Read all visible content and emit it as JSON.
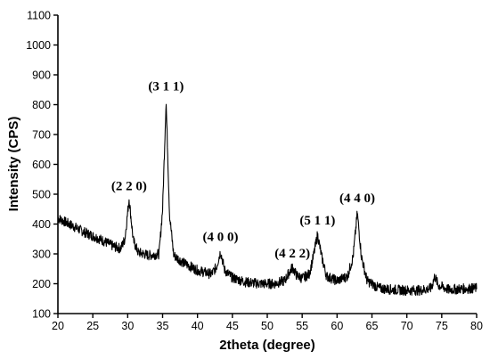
{
  "chart_data": {
    "type": "line",
    "title": "",
    "xlabel": "2theta (degree)",
    "ylabel": "Intensity (CPS)",
    "xlim": [
      20,
      80
    ],
    "ylim": [
      100,
      1100
    ],
    "grid": false,
    "legend": "none",
    "line_color": "#000000",
    "x_ticks": [
      "20",
      "25",
      "30",
      "35",
      "40",
      "45",
      "50",
      "55",
      "60",
      "65",
      "70",
      "75",
      "80"
    ],
    "y_ticks": [
      "100",
      "200",
      "300",
      "400",
      "500",
      "600",
      "700",
      "800",
      "900",
      "1000",
      "1100"
    ],
    "series": [
      {
        "x": [
          20,
          22,
          24,
          26,
          28,
          29,
          29.6,
          30.2,
          30.8,
          31.5,
          33,
          34.5,
          35.0,
          35.5,
          36.0,
          36.6,
          38,
          40,
          42,
          42.7,
          43.3,
          43.9,
          45,
          47,
          49,
          51,
          52.5,
          53.0,
          53.6,
          54.2,
          55,
          56.0,
          56.6,
          57.2,
          57.8,
          58.5,
          60,
          61.5,
          62.3,
          62.9,
          63.5,
          64.3,
          66,
          68,
          70,
          72,
          73.5,
          74.0,
          74.5,
          76,
          78,
          80
        ],
        "y": [
          420,
          395,
          370,
          350,
          325,
          318,
          350,
          485,
          345,
          305,
          295,
          300,
          450,
          812,
          430,
          295,
          270,
          245,
          232,
          255,
          308,
          245,
          220,
          205,
          200,
          200,
          210,
          232,
          255,
          228,
          218,
          232,
          290,
          365,
          290,
          225,
          210,
          225,
          290,
          438,
          290,
          210,
          185,
          180,
          178,
          178,
          185,
          225,
          195,
          180,
          183,
          185
        ]
      }
    ],
    "annotations": [
      {
        "text": "(2 2 0)",
        "x": 30.2,
        "y": 495
      },
      {
        "text": "(3 1 1)",
        "x": 35.5,
        "y": 830
      },
      {
        "text": "(4 0 0)",
        "x": 43.3,
        "y": 325
      },
      {
        "text": "(4 2 2)",
        "x": 53.6,
        "y": 270
      },
      {
        "text": "(5 1 1)",
        "x": 57.2,
        "y": 380
      },
      {
        "text": "(4 4 0)",
        "x": 62.9,
        "y": 455
      }
    ]
  }
}
